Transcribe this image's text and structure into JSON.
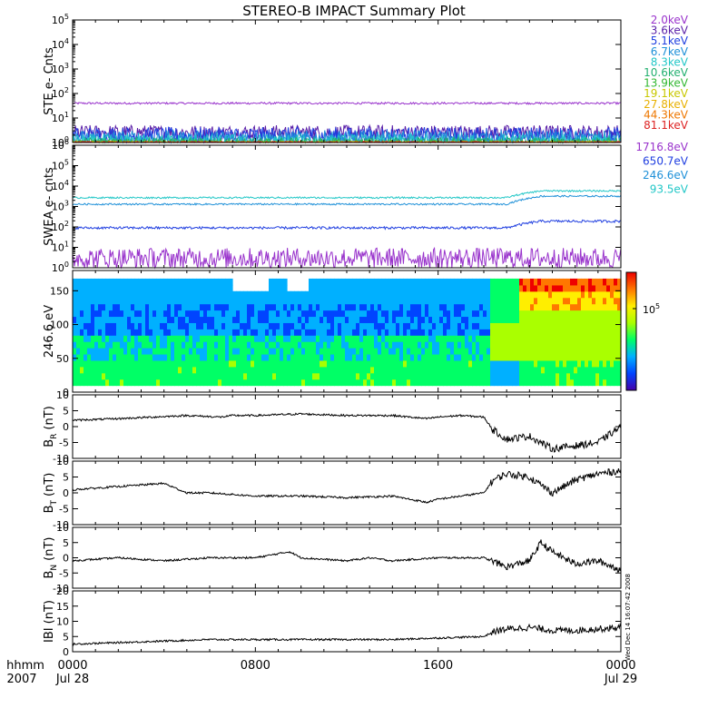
{
  "title": "STEREO-B IMPACT Summary Plot",
  "x_axis": {
    "ticks": [
      {
        "label": "0000",
        "sublabel": "Jul 28",
        "hour": 0
      },
      {
        "label": "0800",
        "sublabel": "",
        "hour": 8
      },
      {
        "label": "1600",
        "sublabel": "",
        "hour": 16
      },
      {
        "label": "0000",
        "sublabel": "Jul 29",
        "hour": 24
      }
    ],
    "label_top": "hhmm",
    "label_bottom": "2007",
    "range_hours": [
      0,
      24
    ]
  },
  "timestamp": "Wed Dec 14 16:07:42 2008",
  "chart_data": [
    {
      "type": "line",
      "ylabel": "STE e- Cnts",
      "yscale": "log",
      "ylim": [
        1,
        100000
      ],
      "ytick_exponents": [
        0,
        1,
        2,
        3,
        4,
        5
      ],
      "series": [
        {
          "name": "2.0keV",
          "color": "#9933cc",
          "level": 40,
          "noise": 0.04
        },
        {
          "name": "3.6keV",
          "color": "#5a1fa8",
          "level": 2.6,
          "noise": 0.3
        },
        {
          "name": "5.1keV",
          "color": "#1f3ee0",
          "level": 1.9,
          "noise": 0.35
        },
        {
          "name": "6.7keV",
          "color": "#1e90d8",
          "level": 1.4,
          "noise": 0.35
        },
        {
          "name": "8.3keV",
          "color": "#22c7c7",
          "level": 1.1,
          "noise": 0.3
        },
        {
          "name": "10.6keV",
          "color": "#22b070",
          "level": 1.0,
          "noise": 0.2
        },
        {
          "name": "13.9keV",
          "color": "#33b833",
          "level": 1.0,
          "noise": 0.1
        },
        {
          "name": "19.1keV",
          "color": "#c8c800",
          "level": 1.0,
          "noise": 0.05
        },
        {
          "name": "27.8keV",
          "color": "#e8b000",
          "level": 1.0,
          "noise": 0.05
        },
        {
          "name": "44.3keV",
          "color": "#ee7700",
          "level": 1.0,
          "noise": 0.05
        },
        {
          "name": "81.1keV",
          "color": "#dd2222",
          "level": 1.0,
          "noise": 0.05
        }
      ]
    },
    {
      "type": "line",
      "ylabel": "SWEA e- cnts",
      "yscale": "log",
      "ylim": [
        1,
        1000000
      ],
      "ytick_exponents": [
        0,
        1,
        2,
        3,
        4,
        5,
        6
      ],
      "series": [
        {
          "name": "1716.8eV",
          "color": "#9933cc",
          "level": 3,
          "noise": 0.5,
          "later": 3
        },
        {
          "name": "650.7eV",
          "color": "#1f3ee0",
          "level": 90,
          "noise": 0.06,
          "later": 190
        },
        {
          "name": "246.6eV",
          "color": "#1e90d8",
          "level": 1300,
          "noise": 0.04,
          "later": 3200
        },
        {
          "name": "93.5eV",
          "color": "#22c7c7",
          "level": 2700,
          "noise": 0.04,
          "later": 5800
        }
      ]
    },
    {
      "type": "heatmap",
      "ylabel": "246.6 eV",
      "ylim": [
        0,
        180
      ],
      "yticks": [
        0,
        50,
        100,
        150
      ],
      "colorbar_label": "10",
      "colorbar_exponent": "5",
      "colors": [
        "#4400aa",
        "#0044ff",
        "#00b0ff",
        "#00ff66",
        "#aaff00",
        "#ffee00",
        "#ff7700",
        "#ee0000"
      ]
    },
    {
      "type": "line",
      "ylabel": "B",
      "ylabel_sub": "R",
      "ylabel_unit": "(nT)",
      "ylim": [
        -10,
        10
      ],
      "yticks": [
        -10,
        -5,
        0,
        5,
        10
      ],
      "series": [
        {
          "x": [
            0,
            2,
            5,
            6.5,
            7,
            8,
            10,
            12,
            14,
            15.5,
            16,
            17,
            18,
            18.4,
            19,
            20,
            21,
            22,
            23,
            24
          ],
          "y": [
            2,
            2.5,
            3.5,
            3,
            3.5,
            3.5,
            4,
            3.5,
            3.5,
            2.5,
            3,
            3.5,
            3,
            -1,
            -4,
            -3,
            -7,
            -6,
            -5,
            0
          ]
        }
      ]
    },
    {
      "type": "line",
      "ylabel": "B",
      "ylabel_sub": "T",
      "ylabel_unit": "(nT)",
      "ylim": [
        -10,
        10
      ],
      "yticks": [
        -10,
        -5,
        0,
        5,
        10
      ],
      "series": [
        {
          "x": [
            0,
            2,
            4,
            5,
            6,
            8,
            10,
            12,
            14,
            15.5,
            16,
            17,
            18,
            18.4,
            19,
            20,
            21,
            22,
            23,
            24
          ],
          "y": [
            1,
            2,
            3,
            0,
            0,
            -1,
            -1,
            -1.5,
            -1,
            -3,
            -2,
            -1,
            0,
            4,
            6,
            5,
            0,
            4,
            6,
            7
          ]
        }
      ]
    },
    {
      "type": "line",
      "ylabel": "B",
      "ylabel_sub": "N",
      "ylabel_unit": "(nT)",
      "ylim": [
        -10,
        10
      ],
      "yticks": [
        -10,
        -5,
        0,
        5,
        10
      ],
      "series": [
        {
          "x": [
            0,
            2,
            4,
            6,
            8,
            9.5,
            10,
            12,
            13,
            14,
            16,
            18,
            19,
            20,
            20.5,
            21,
            22,
            23,
            24
          ],
          "y": [
            -1,
            0,
            -1,
            0,
            0,
            2,
            0,
            -1,
            0,
            -1,
            0,
            0,
            -3,
            -1,
            5,
            2,
            -2,
            -1,
            -4
          ]
        }
      ]
    },
    {
      "type": "line",
      "ylabel": "IBI",
      "ylabel_unit": "(nT)",
      "ylim": [
        0,
        20
      ],
      "yticks": [
        0,
        5,
        10,
        15,
        20
      ],
      "series": [
        {
          "x": [
            0,
            2,
            4,
            6,
            8,
            10,
            12,
            14,
            16,
            18,
            18.4,
            19,
            20,
            21,
            22,
            23,
            24
          ],
          "y": [
            2.5,
            3,
            3.5,
            4,
            4,
            4,
            4,
            4,
            4.5,
            5,
            6.5,
            7.5,
            8,
            7,
            7,
            7.5,
            8
          ]
        }
      ]
    }
  ]
}
